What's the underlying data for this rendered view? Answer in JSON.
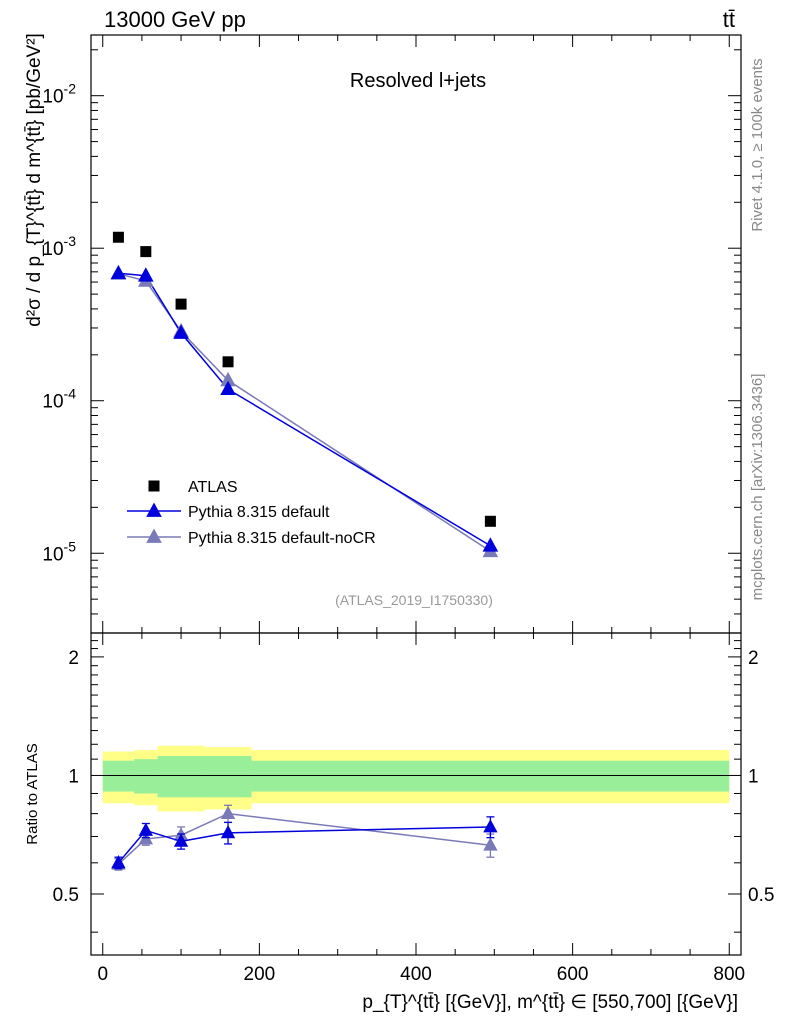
{
  "header": {
    "left_title": "13000 GeV pp",
    "right_title": "tt̄"
  },
  "side_labels": {
    "rivet": "Rivet 4.1.0, ≥ 100k events",
    "mcplots": "mcplots.cern.ch [arXiv:1306.3436]"
  },
  "colors": {
    "atlas": "#000000",
    "pythia_default": "#0000dd",
    "pythia_nocr": "#7a7ab8",
    "band_inner": "#99ee99",
    "band_outer": "#ffff88"
  },
  "chart_data": [
    {
      "type": "scatter",
      "panel": "main",
      "title": "Resolved l+jets",
      "watermark": "(ATLAS_2019_I1750330)",
      "ylabel": "d²σ / d p_{T}^{tt̄} d m^{tt̄} [pb/GeV²]",
      "yscale": "log",
      "ylim": [
        3e-06,
        0.025
      ],
      "xlim": [
        -15,
        815
      ],
      "ytick_labels": [
        "10^-5",
        "10^-4",
        "10^-3",
        "10^-2"
      ],
      "x": [
        20,
        55,
        100,
        160,
        495
      ],
      "series": [
        {
          "name": "ATLAS",
          "marker": "square",
          "values": [
            0.00118,
            0.00095,
            0.00043,
            0.00018,
            1.62e-05
          ]
        },
        {
          "name": "Pythia 8.315 default",
          "marker": "triangle",
          "values": [
            0.000685,
            0.00066,
            0.000278,
            0.000119,
            1.12e-05
          ]
        },
        {
          "name": "Pythia 8.315 default-noCR",
          "marker": "triangle",
          "values": [
            0.00068,
            0.00061,
            0.000285,
            0.000136,
            1.03e-05
          ]
        }
      ],
      "legend": [
        "ATLAS",
        "Pythia 8.315 default",
        "Pythia 8.315 default-noCR"
      ],
      "legend_position": "bottom-left"
    },
    {
      "type": "line",
      "panel": "ratio",
      "ylabel": "Ratio to ATLAS",
      "xlabel": "p_{T}^{tt̄} [{GeV}], m^{tt̄} ∈ [550,700] [{GeV}]",
      "ylim": [
        0.35,
        2.3
      ],
      "xlim": [
        -15,
        815
      ],
      "xticks": [
        0,
        200,
        400,
        600,
        800
      ],
      "xtick_labels": [
        "0",
        "200",
        "400",
        "600",
        "800"
      ],
      "yticks": [
        0.5,
        1,
        2
      ],
      "ytick_labels": [
        "0.5",
        "1",
        "2"
      ],
      "reference_line": 1,
      "uncertainty_bins": [
        {
          "x0": 0,
          "x1": 40,
          "inner": [
            0.91,
            1.09
          ],
          "outer": [
            0.85,
            1.15
          ]
        },
        {
          "x0": 40,
          "x1": 70,
          "inner": [
            0.9,
            1.1
          ],
          "outer": [
            0.84,
            1.16
          ]
        },
        {
          "x0": 70,
          "x1": 130,
          "inner": [
            0.88,
            1.12
          ],
          "outer": [
            0.81,
            1.19
          ]
        },
        {
          "x0": 130,
          "x1": 190,
          "inner": [
            0.88,
            1.12
          ],
          "outer": [
            0.82,
            1.18
          ]
        },
        {
          "x0": 190,
          "x1": 800,
          "inner": [
            0.91,
            1.09
          ],
          "outer": [
            0.85,
            1.16
          ]
        }
      ],
      "x": [
        20,
        55,
        100,
        160,
        495
      ],
      "series": [
        {
          "name": "Pythia 8.315 default",
          "values": [
            0.6,
            0.725,
            0.68,
            0.715,
            0.74
          ],
          "errors": [
            0.02,
            0.03,
            0.03,
            0.045,
            0.045
          ]
        },
        {
          "name": "Pythia 8.315 default-noCR",
          "values": [
            0.595,
            0.69,
            0.705,
            0.8,
            0.665
          ],
          "errors": [
            0.02,
            0.025,
            0.035,
            0.04,
            0.045
          ]
        }
      ]
    }
  ]
}
